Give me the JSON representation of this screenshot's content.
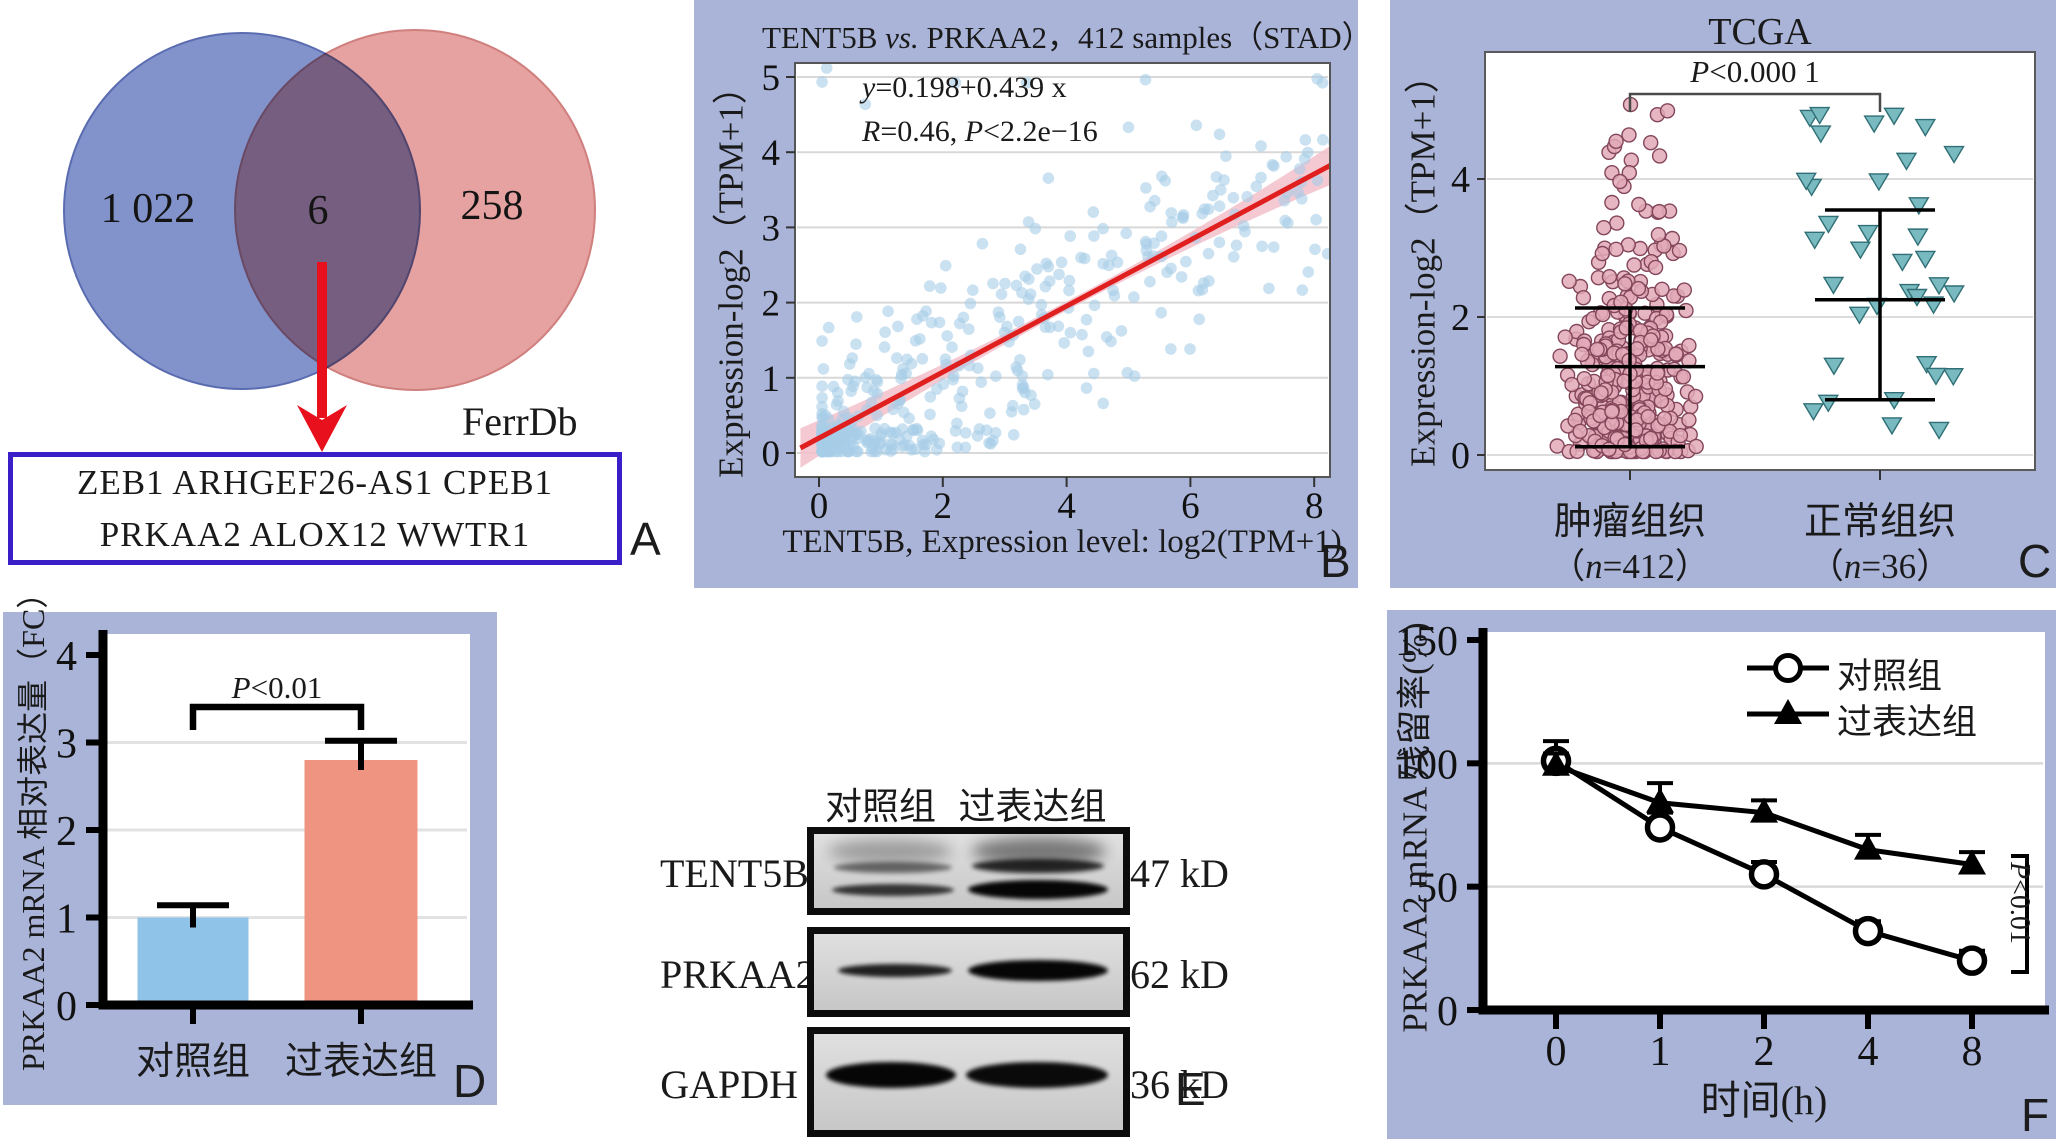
{
  "figure": {
    "background": "#ffffff",
    "panel_bg": "#a9b4d8"
  },
  "panels": {
    "a": {
      "label": "A",
      "venn": {
        "left_count": "1 022",
        "overlap_count": "6",
        "right_count": "258",
        "left_color": "#7487c6",
        "right_color": "#e08d8b"
      },
      "db_label": "FerrDb",
      "gene_line1": "ZEB1 ARHGEF26-AS1 CPEB1",
      "gene_line2": "PRKAA2 ALOX12 WWTR1",
      "box_border_color": "#3a1ec8",
      "arrow_color": "#e8101c"
    },
    "b": {
      "label": "B",
      "title_pre": "TENT5B ",
      "title_vs": "vs.",
      "title_post": " PRKAA2，412 samples（STAD）",
      "eq_y": "y",
      "eq_rest": "=0.198+0.439 x",
      "stat_R": "R",
      "stat_eq": "=0.46, ",
      "stat_P": "P",
      "stat_rest": "<2.2e−16",
      "ylabel": "Expression-log2（TPM+1）",
      "xlabel": "TENT5B, Expression level: log2(TPM+1)"
    },
    "c": {
      "label": "C",
      "title": "TCGA",
      "p_P": "P",
      "p_rest": "<0.000 1",
      "ylabel": "Expression-log2（TPM+1）",
      "group1": {
        "name": "肿瘤组织",
        "n_open": "（",
        "n_var": "n",
        "n_rest": "=412）"
      },
      "group2": {
        "name": "正常组织",
        "n_open": "（",
        "n_var": "n",
        "n_rest": "=36）"
      }
    },
    "d": {
      "label": "D",
      "ylabel": "PRKAA2 mRNA 相对表达量（FC）",
      "p_P": "P",
      "p_rest": "<0.01",
      "cat1": "对照组",
      "cat2": "过表达组"
    },
    "e": {
      "label": "E",
      "col1": "对照组",
      "col2": "过表达组",
      "rows": [
        {
          "protein": "TENT5B",
          "size": "47 kD"
        },
        {
          "protein": "PRKAA2",
          "size": "62 kD"
        },
        {
          "protein": "GAPDH",
          "size": "36 kD"
        }
      ]
    },
    "f": {
      "label": "F",
      "ylabel": "PRKAA2 mRNA 残留率(%)",
      "xlabel": "时间(h)",
      "legend1": "对照组",
      "legend2": "过表达组",
      "p_P": "P",
      "p_rest": "<0.01"
    }
  },
  "chart_data": [
    {
      "panel": "B",
      "type": "scatter",
      "title": "TENT5B vs. PRKAA2，412 samples（STAD）",
      "xlabel": "TENT5B, Expression level: log2(TPM+1)",
      "ylabel": "Expression-log2（TPM+1）",
      "n_points": 412,
      "regression": {
        "equation": "y=0.198+0.439 x",
        "intercept": 0.198,
        "slope": 0.439,
        "R": 0.46,
        "P": "<2.2e-16"
      },
      "xticks": [
        0,
        2,
        4,
        6,
        8
      ],
      "yticks": [
        0,
        1,
        2,
        3,
        4,
        5
      ],
      "xlim": [
        -0.4,
        8.5
      ],
      "ylim": [
        -0.15,
        5.4
      ],
      "grid": true,
      "point_color": "#a6cde8",
      "line_color": "#e01f1f",
      "band_color": "#f2bfca",
      "seed": 42
    },
    {
      "panel": "C",
      "type": "scatter",
      "title": "TCGA",
      "ylabel": "Expression-log2（TPM+1）",
      "yticks": [
        0,
        2,
        4
      ],
      "ylim": [
        -0.25,
        5.6
      ],
      "p_label": "P<0.000 1",
      "groups": [
        {
          "name": "肿瘤组织（n=412）",
          "n": 412,
          "marker": "circle",
          "fill": "#e2a9b8",
          "stroke": "#84465a",
          "mean": 1.28,
          "whisker_top": 2.13,
          "whisker_bottom": 0.12,
          "value_range": [
            0.05,
            5.15
          ]
        },
        {
          "name": "正常组织（n=36）",
          "n": 36,
          "marker": "triangle-down",
          "fill": "#79bac0",
          "stroke": "#2f6f75",
          "mean": 2.25,
          "whisker_top": 3.55,
          "whisker_bottom": 0.8,
          "value_range": [
            0.35,
            5.0
          ]
        }
      ],
      "seed": 7
    },
    {
      "panel": "D",
      "type": "bar",
      "ylabel": "PRKAA2 mRNA 相对表达量（FC）",
      "categories": [
        "对照组",
        "过表达组"
      ],
      "values": [
        1.0,
        2.8
      ],
      "errors_up": [
        0.14,
        0.22
      ],
      "bar_colors": [
        "#90c3e8",
        "#ef9480"
      ],
      "yticks": [
        0,
        1,
        2,
        3,
        4
      ],
      "ylim": [
        0,
        4
      ],
      "grid": true,
      "p_label": "P<0.01"
    },
    {
      "panel": "F",
      "type": "line",
      "ylabel": "PRKAA2 mRNA 残留率(%)",
      "xlabel": "时间(h)",
      "categories": [
        "0",
        "1",
        "2",
        "4",
        "8"
      ],
      "yticks": [
        0,
        50,
        100,
        150
      ],
      "ylim": [
        0,
        150
      ],
      "grid": true,
      "legend_position": "top-right",
      "series": [
        {
          "name": "对照组",
          "marker": "open-circle",
          "values": [
            101,
            74,
            55,
            32,
            20
          ],
          "errors_up": [
            8,
            6,
            5,
            4,
            4
          ]
        },
        {
          "name": "过表达组",
          "marker": "filled-triangle",
          "values": [
            99,
            84,
            80,
            65,
            59
          ],
          "errors_up": [
            5,
            8,
            5,
            6,
            5
          ]
        }
      ],
      "p_label": "P<0.01"
    }
  ]
}
